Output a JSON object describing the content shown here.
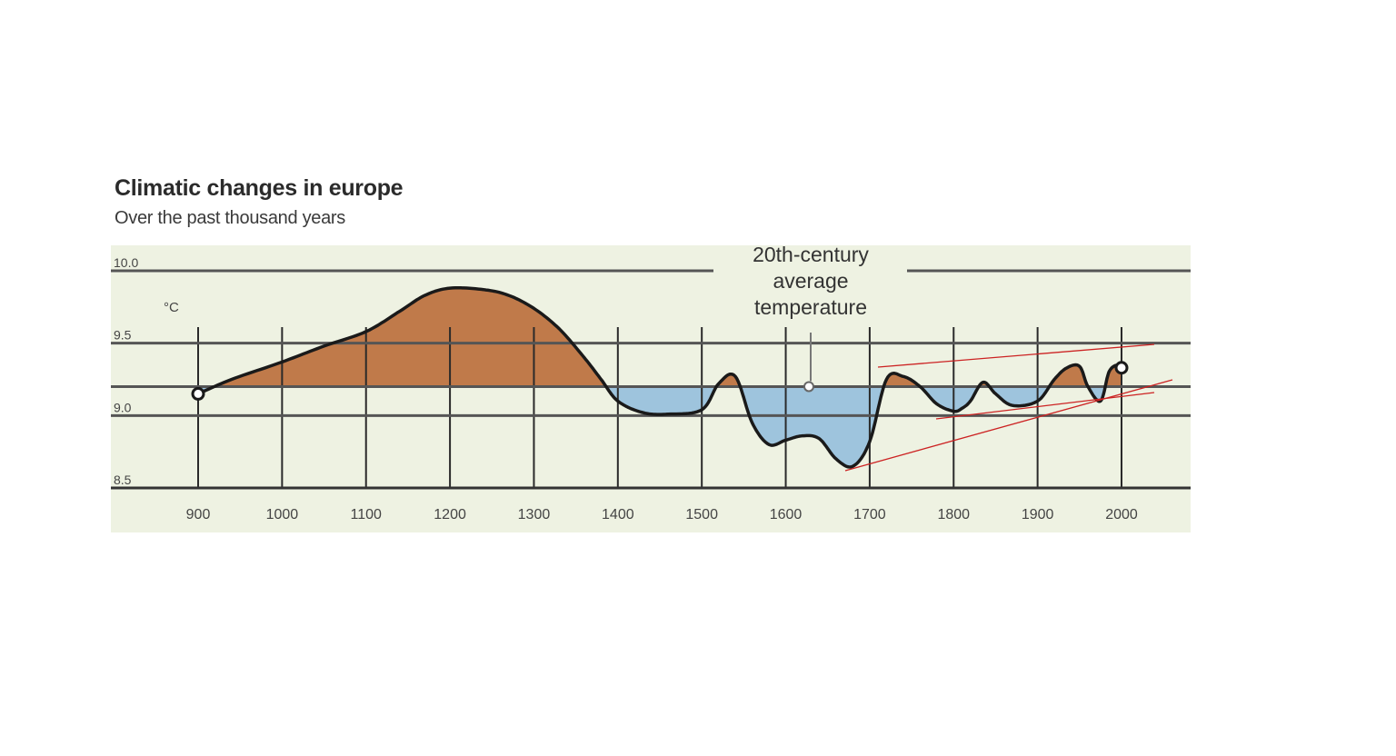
{
  "chart_data": {
    "type": "area",
    "title": "Climatic changes in europe",
    "subtitle": "Over the past thousand years",
    "ylabel": "°C",
    "xlabel": "",
    "xlim": [
      900,
      2000
    ],
    "ylim": [
      8.5,
      10.0
    ],
    "baseline": 9.2,
    "x_ticks": [
      "900",
      "1000",
      "1100",
      "1200",
      "1300",
      "1400",
      "1500",
      "1600",
      "1700",
      "1800",
      "1900",
      "2000"
    ],
    "y_ticks": [
      "10.0",
      "9.5",
      "9.0",
      "8.5"
    ],
    "grid": true,
    "above_color": "#c07a4a",
    "below_color": "#9ec4dd",
    "background_color": "#eef2e2",
    "annotation": "20th-century average temperature",
    "annotation_lines": [
      "20th-century",
      "average",
      "temperature"
    ],
    "x": [
      900,
      940,
      1000,
      1050,
      1100,
      1140,
      1170,
      1200,
      1240,
      1270,
      1300,
      1330,
      1360,
      1380,
      1400,
      1430,
      1460,
      1500,
      1520,
      1540,
      1560,
      1580,
      1600,
      1620,
      1640,
      1660,
      1680,
      1700,
      1720,
      1740,
      1760,
      1780,
      1800,
      1810,
      1820,
      1835,
      1850,
      1870,
      1900,
      1920,
      1935,
      1950,
      1960,
      1975,
      1985,
      1995,
      2000
    ],
    "y": [
      9.15,
      9.25,
      9.37,
      9.48,
      9.58,
      9.72,
      9.83,
      9.88,
      9.87,
      9.83,
      9.74,
      9.6,
      9.4,
      9.25,
      9.1,
      9.02,
      9.01,
      9.04,
      9.22,
      9.27,
      8.95,
      8.8,
      8.83,
      8.86,
      8.84,
      8.7,
      8.65,
      8.82,
      9.25,
      9.27,
      9.2,
      9.08,
      9.03,
      9.05,
      9.1,
      9.23,
      9.15,
      9.07,
      9.1,
      9.25,
      9.33,
      9.34,
      9.2,
      9.1,
      9.3,
      9.35,
      9.33
    ]
  }
}
